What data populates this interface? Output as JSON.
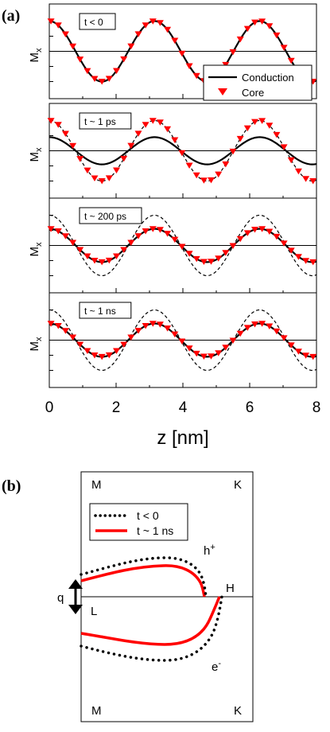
{
  "panel_a": {
    "label": "(a)",
    "ylabel_main": "M",
    "ylabel_sub": "x",
    "xlabel": "z [nm]",
    "legend": {
      "conduction": "Conduction",
      "core": "Core"
    },
    "colors": {
      "core": "#ff0000",
      "line": "#000000"
    },
    "chart_data": {
      "type": "line",
      "xlim": [
        0,
        8
      ],
      "x_ticks": [
        "0",
        "2",
        "4",
        "6",
        "8"
      ],
      "period_nm": 3.15,
      "panels": [
        {
          "title": "t < 0",
          "conduction_amplitude": 1.0,
          "core_amplitude": 1.0,
          "reference_dashed": false
        },
        {
          "title": "t ~ 1 ps",
          "conduction_amplitude": 0.45,
          "core_amplitude": 1.0,
          "reference_dashed": true
        },
        {
          "title": "t ~ 200 ps",
          "conduction_amplitude": 0.55,
          "core_amplitude": 0.55,
          "reference_dashed": true
        },
        {
          "title": "t ~ 1 ns",
          "conduction_amplitude": 0.55,
          "core_amplitude": 0.55,
          "reference_dashed": true
        }
      ]
    }
  },
  "panel_b": {
    "label": "(b)",
    "corners": {
      "top_left": "M",
      "top_right": "K",
      "bottom_left": "M",
      "bottom_right": "K"
    },
    "points": {
      "L": "L",
      "H": "H"
    },
    "q_label": "q",
    "hole_label": "h",
    "hole_sup": "+",
    "electron_label": "e",
    "electron_sup": "-",
    "legend": {
      "before": "t < 0",
      "after": "t ~ 1 ns"
    },
    "colors": {
      "after": "#ff0000",
      "before": "#000000"
    }
  }
}
